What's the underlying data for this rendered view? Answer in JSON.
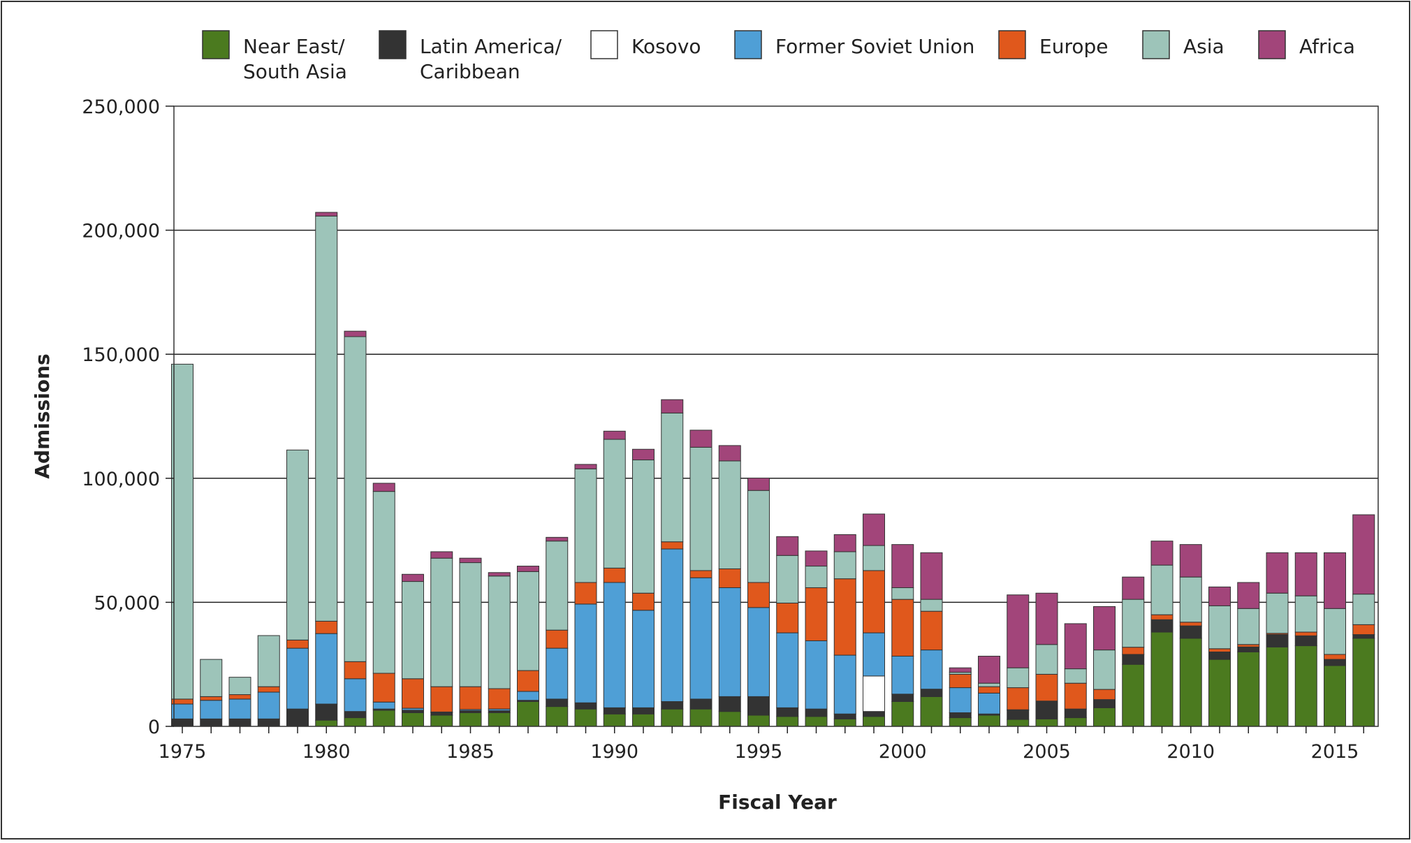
{
  "chart_data": {
    "type": "bar",
    "stacked": true,
    "title": "",
    "xlabel": "Fiscal Year",
    "ylabel": "Admissions",
    "ylim": [
      0,
      250000
    ],
    "yticks": [
      0,
      50000,
      100000,
      150000,
      200000,
      250000
    ],
    "ytick_labels": [
      "0",
      "50,000",
      "100,000",
      "150,000",
      "200,000",
      "250,000"
    ],
    "xtick_labels": [
      "1975",
      "1980",
      "1985",
      "1990",
      "1995",
      "2000",
      "2005",
      "2010",
      "2015"
    ],
    "grid": "horizontal",
    "legend_position": "top",
    "categories": [
      1975,
      1976,
      1977,
      1978,
      1979,
      1980,
      1981,
      1982,
      1983,
      1984,
      1985,
      1986,
      1987,
      1988,
      1989,
      1990,
      1991,
      1992,
      1993,
      1994,
      1995,
      1996,
      1997,
      1998,
      1999,
      2000,
      2001,
      2002,
      2003,
      2004,
      2005,
      2006,
      2007,
      2008,
      2009,
      2010,
      2011,
      2012,
      2013,
      2014,
      2015,
      2016
    ],
    "series": [
      {
        "name": "Near East/ South Asia",
        "label_lines": [
          "Near East/",
          "South Asia"
        ],
        "color": "#4b7a1f",
        "values": [
          0,
          0,
          0,
          0,
          0,
          2500,
          3500,
          6500,
          5500,
          4500,
          5500,
          5500,
          10000,
          8000,
          7000,
          5000,
          5000,
          7000,
          7000,
          6000,
          4500,
          4000,
          4000,
          3000,
          4000,
          10000,
          12000,
          3500,
          4500,
          2800,
          3000,
          3500,
          7500,
          25000,
          38000,
          35500,
          27000,
          30000,
          32000,
          32500,
          24500,
          35500
        ]
      },
      {
        "name": "Latin America/ Caribbean",
        "label_lines": [
          "Latin America/",
          "Caribbean"
        ],
        "color": "#333333",
        "values": [
          3000,
          3000,
          3000,
          3000,
          7000,
          6500,
          2500,
          500,
          1000,
          1000,
          800,
          800,
          500,
          3000,
          2500,
          2500,
          2500,
          3000,
          4000,
          6000,
          7500,
          3500,
          3000,
          2000,
          2000,
          3000,
          3000,
          2000,
          500,
          3700,
          7000,
          3500,
          3300,
          4000,
          5000,
          5000,
          3000,
          2000,
          5000,
          4000,
          2500,
          1500
        ]
      },
      {
        "name": "Kosovo",
        "label_lines": [
          "Kosovo"
        ],
        "color": "#ffffff",
        "values": [
          0,
          0,
          0,
          0,
          0,
          0,
          0,
          0,
          0,
          0,
          0,
          0,
          0,
          0,
          0,
          0,
          0,
          0,
          0,
          0,
          0,
          0,
          0,
          0,
          14300,
          0,
          0,
          0,
          0,
          0,
          0,
          0,
          0,
          0,
          0,
          0,
          0,
          0,
          0,
          0,
          0,
          0
        ]
      },
      {
        "name": "Former Soviet Union",
        "label_lines": [
          "Former Soviet Union"
        ],
        "color": "#4f9fd6",
        "values": [
          6000,
          7500,
          8000,
          10800,
          24500,
          28400,
          13200,
          2800,
          800,
          300,
          500,
          700,
          3600,
          20500,
          39800,
          50500,
          39300,
          61500,
          48900,
          43900,
          35900,
          30200,
          27500,
          23700,
          17400,
          15300,
          15800,
          10100,
          8400,
          200,
          200,
          0,
          0,
          0,
          0,
          0,
          0,
          0,
          0,
          0,
          0,
          0
        ]
      },
      {
        "name": "Europe",
        "label_lines": [
          "Europe"
        ],
        "color": "#e0581c",
        "values": [
          2000,
          1500,
          1800,
          2200,
          3300,
          5000,
          6900,
          11600,
          11900,
          10200,
          9200,
          8200,
          8400,
          7300,
          8700,
          5800,
          6900,
          2900,
          2900,
          7600,
          10100,
          12000,
          21400,
          30800,
          25100,
          22900,
          15600,
          5400,
          2600,
          8900,
          10800,
          10400,
          4100,
          2900,
          2000,
          1500,
          1300,
          1000,
          500,
          1500,
          2000,
          4000
        ]
      },
      {
        "name": "Asia",
        "label_lines": [
          "Asia"
        ],
        "color": "#9dc4b9",
        "values": [
          135000,
          15000,
          7000,
          20600,
          76600,
          163300,
          131000,
          73300,
          39200,
          51800,
          50000,
          45400,
          39900,
          35900,
          45800,
          51900,
          53700,
          51900,
          49700,
          43500,
          37100,
          19200,
          8700,
          10900,
          10100,
          4700,
          4800,
          800,
          1400,
          8000,
          12000,
          5800,
          15900,
          19300,
          20000,
          18200,
          17300,
          14500,
          16200,
          14600,
          18500,
          12300
        ]
      },
      {
        "name": "Africa",
        "label_lines": [
          "Africa"
        ],
        "color": "#a2457a",
        "values": [
          0,
          0,
          0,
          0,
          0,
          1500,
          2200,
          3300,
          2900,
          2600,
          1800,
          1400,
          2200,
          1500,
          1800,
          3300,
          4300,
          5400,
          6900,
          6200,
          5000,
          7600,
          6100,
          6900,
          12700,
          17400,
          18800,
          1800,
          10900,
          29400,
          20700,
          18200,
          17500,
          9000,
          9700,
          13100,
          7600,
          10500,
          16300,
          17400,
          22500,
          32000
        ]
      }
    ]
  }
}
